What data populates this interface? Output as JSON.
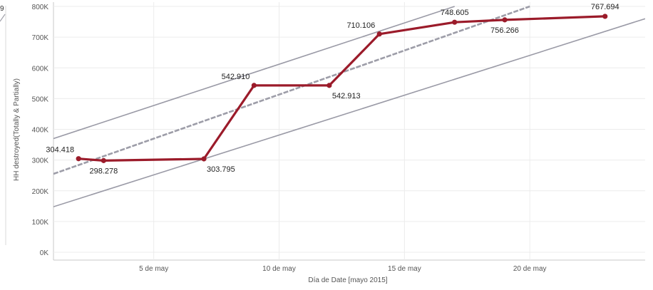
{
  "chart_data": {
    "type": "line",
    "title": "",
    "xlabel": "Día de Date [mayo 2015]",
    "ylabel": "HH destroyed(Totally & Partially)",
    "ylim": [
      0,
      800000
    ],
    "xlim": [
      1.0,
      24.6
    ],
    "grid": true,
    "legend": "none",
    "x_ticks": [
      {
        "day": 5,
        "label": "5 de may"
      },
      {
        "day": 10,
        "label": "10 de may"
      },
      {
        "day": 15,
        "label": "15 de may"
      },
      {
        "day": 20,
        "label": "20 de may"
      }
    ],
    "y_ticks": [
      {
        "value": 0,
        "label": "0K"
      },
      {
        "value": 100000,
        "label": "100K"
      },
      {
        "value": 200000,
        "label": "200K"
      },
      {
        "value": 300000,
        "label": "300K"
      },
      {
        "value": 400000,
        "label": "400K"
      },
      {
        "value": 500000,
        "label": "500K"
      },
      {
        "value": 600000,
        "label": "600K"
      },
      {
        "value": 700000,
        "label": "700K"
      },
      {
        "value": 800000,
        "label": "800K"
      }
    ],
    "series": [
      {
        "color": "#9b1b2a",
        "points": [
          {
            "date": "2015-05-02",
            "day": 2,
            "value": 304418,
            "label": "304.418",
            "label_pos": "above-left"
          },
          {
            "date": "2015-05-03",
            "day": 3,
            "value": 298278,
            "label": "298.278",
            "label_pos": "below"
          },
          {
            "date": "2015-05-07",
            "day": 7,
            "value": 303795,
            "label": "303.795",
            "label_pos": "below-right"
          },
          {
            "date": "2015-05-09",
            "day": 9,
            "value": 542910,
            "label": "542.910",
            "label_pos": "above-left"
          },
          {
            "date": "2015-05-12",
            "day": 12,
            "value": 542913,
            "label": "542.913",
            "label_pos": "below-right"
          },
          {
            "date": "2015-05-14",
            "day": 14,
            "value": 710106,
            "label": "710.106",
            "label_pos": "above-left"
          },
          {
            "date": "2015-05-17",
            "day": 17,
            "value": 748605,
            "label": "748.605",
            "label_pos": "above"
          },
          {
            "date": "2015-05-19",
            "day": 19,
            "value": 756266,
            "label": "756.266",
            "label_pos": "below"
          },
          {
            "date": "2015-05-23",
            "day": 23,
            "value": 767694,
            "label": "767.694",
            "label_pos": "above"
          }
        ]
      }
    ],
    "trend": {
      "type": "linear",
      "color": "#9a9aa6",
      "center": [
        {
          "day": 1,
          "value": 255000
        },
        {
          "day": 20,
          "value": 800000
        }
      ],
      "upper": [
        {
          "day": 1,
          "value": 370000
        },
        {
          "day": 17,
          "value": 800000
        }
      ],
      "lower": [
        {
          "day": 1,
          "value": 148000
        },
        {
          "day": 24.6,
          "value": 760000
        }
      ]
    }
  },
  "left_panel": {
    "clipped_value_text": "9"
  },
  "colors": {
    "series": "#9b1b2a",
    "trend": "#9a9aa6",
    "grid": "#ececec",
    "axis": "#c8c8c8"
  }
}
